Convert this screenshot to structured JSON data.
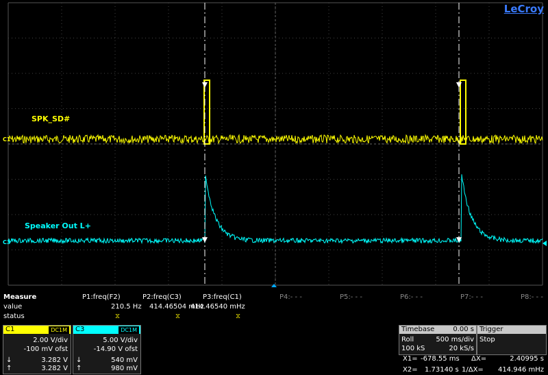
{
  "brand": "LeCroy",
  "channels": {
    "c1": {
      "marker": "C1",
      "label": "SPK_SD#",
      "color": "#ffff00"
    },
    "c3": {
      "marker": "C3",
      "label": "Speaker Out L+",
      "color": "#00ffff"
    }
  },
  "measure": {
    "title": "Measure",
    "row_labels": [
      "value",
      "status"
    ],
    "params": [
      {
        "name": "P1:freq(F2)",
        "value": "210.5 Hz",
        "status": "⧖"
      },
      {
        "name": "P2:freq(C3)",
        "value": "414.46504 mHz",
        "status": "⧖"
      },
      {
        "name": "P3:freq(C1)",
        "value": "414.46540 mHz",
        "status": "⧖"
      },
      {
        "name": "P4:- - -",
        "value": "",
        "status": ""
      },
      {
        "name": "P5:- - -",
        "value": "",
        "status": ""
      },
      {
        "name": "P6:- - -",
        "value": "",
        "status": ""
      },
      {
        "name": "P7:- - -",
        "value": "",
        "status": ""
      },
      {
        "name": "P8:- - -",
        "value": "",
        "status": ""
      }
    ]
  },
  "c1_box": {
    "name": "C1",
    "coupling": "DC1M",
    "vdiv": "2.00 V/div",
    "offset": "-100 mV ofst",
    "down": "3.282 V",
    "up": "3.282 V",
    "down_arrow": "↓",
    "up_arrow": "↑"
  },
  "c3_box": {
    "name": "C3",
    "coupling": "DC1M",
    "vdiv": "5.00 V/div",
    "offset": "-14.90 V ofst",
    "down": "540 mV",
    "up": "980 mV",
    "down_arrow": "↓",
    "up_arrow": "↑"
  },
  "timebase": {
    "title": "Timebase",
    "delay": "0.00 s",
    "mode": "Roll",
    "tdiv": "500 ms/div",
    "samples": "100 kS",
    "rate": "20 kS/s"
  },
  "trigger": {
    "title": "Trigger",
    "state": "Stop"
  },
  "cursors": {
    "x1_label": "X1=",
    "x1": "-678.55 ms",
    "dx_label": "ΔX=",
    "dx": "2.40995 s",
    "x2_label": "X2=",
    "x2": "1.73140 s",
    "inv_label": "1/ΔX=",
    "inv": "414.946 mHz"
  }
}
